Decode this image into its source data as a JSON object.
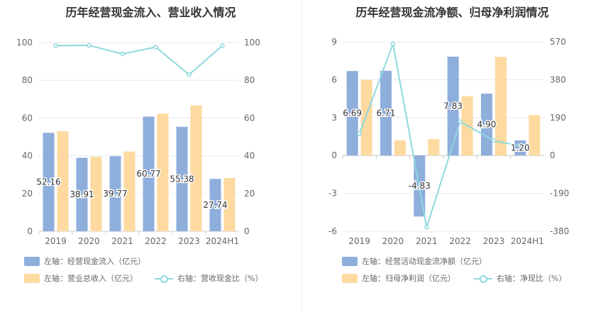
{
  "colors": {
    "blue": "#8eaedc",
    "orange": "#fedaa0",
    "line": "#8ed8de",
    "grid": "#e8eaf3",
    "axis_text": "#666666"
  },
  "left": {
    "title": "历年经营现金流入、营业收入情况",
    "legend": {
      "bar1": "左轴：经营现金流入（亿元）",
      "bar2": "左轴：营业总收入（亿元）",
      "line": "右轴：营收现金比（%）"
    }
  },
  "right": {
    "title": "历年经营现金流净额、归母净利润情况",
    "legend": {
      "bar1": "左轴：经营活动现金流净额（亿元）",
      "bar2": "左轴：归母净利润（亿元）",
      "line": "右轴：净现比（%）"
    }
  },
  "chart_data": [
    {
      "type": "bar",
      "title": "历年经营现金流入、营业收入情况",
      "categories": [
        "2019",
        "2020",
        "2021",
        "2022",
        "2023",
        "2024H1"
      ],
      "y_left": {
        "ylim": [
          0,
          100
        ],
        "ticks": [
          0,
          20,
          40,
          60,
          80,
          100
        ]
      },
      "y_right": {
        "ylim": [
          0,
          100
        ],
        "ticks": [
          0,
          20,
          40,
          60,
          80,
          100
        ]
      },
      "series": [
        {
          "name": "左轴：经营现金流入（亿元）",
          "kind": "bar",
          "axis": "left",
          "values": [
            52.16,
            38.91,
            39.77,
            60.77,
            55.38,
            27.74
          ],
          "labels": [
            "52.16",
            "38.91",
            "39.77",
            "60.77",
            "55.38",
            "27.74"
          ]
        },
        {
          "name": "左轴：营业总收入（亿元）",
          "kind": "bar",
          "axis": "left",
          "values": [
            53.0,
            39.5,
            42.3,
            62.3,
            66.8,
            28.2
          ]
        },
        {
          "name": "右轴：营收现金比（%）",
          "kind": "line",
          "axis": "right",
          "values": [
            98.4,
            98.5,
            94.0,
            97.6,
            83.0,
            98.4
          ]
        }
      ]
    },
    {
      "type": "bar",
      "title": "历年经营现金流净额、归母净利润情况",
      "categories": [
        "2019",
        "2020",
        "2021",
        "2022",
        "2023",
        "2024H1"
      ],
      "y_left": {
        "ylim": [
          -6,
          9
        ],
        "ticks": [
          -6,
          -3,
          0,
          3,
          6,
          9
        ]
      },
      "y_right": {
        "ylim": [
          -380,
          570
        ],
        "ticks": [
          -380,
          -190,
          0,
          190,
          380,
          570
        ]
      },
      "series": [
        {
          "name": "左轴：经营活动现金流净额（亿元）",
          "kind": "bar",
          "axis": "left",
          "values": [
            6.69,
            6.71,
            -4.83,
            7.83,
            4.9,
            1.2
          ],
          "labels": [
            "6.69",
            "6.71",
            "-4.83",
            "7.83",
            "4.90",
            "1.20"
          ]
        },
        {
          "name": "左轴：归母净利润（亿元）",
          "kind": "bar",
          "axis": "left",
          "values": [
            6.0,
            1.2,
            1.3,
            4.7,
            7.8,
            3.2
          ]
        },
        {
          "name": "右轴：净现比（%）",
          "kind": "line",
          "axis": "right",
          "values": [
            110,
            560,
            -360,
            170,
            75,
            40
          ]
        }
      ]
    }
  ]
}
